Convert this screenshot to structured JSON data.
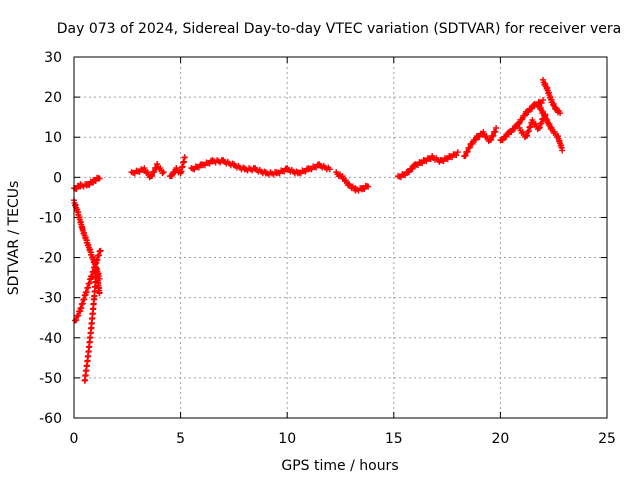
{
  "chart_data": {
    "type": "scatter",
    "title": "Day 073 of 2024, Sidereal Day-to-day VTEC variation (SDTVAR) for receiver vera",
    "xlabel": "GPS time / hours",
    "ylabel": "SDTVAR / TECUs",
    "xlim": [
      0,
      25
    ],
    "ylim": [
      -60,
      30
    ],
    "xticks": [
      0,
      5,
      10,
      15,
      20,
      25
    ],
    "yticks": [
      -60,
      -50,
      -40,
      -30,
      -20,
      -10,
      0,
      10,
      20,
      30
    ],
    "grid": true,
    "marker": "+",
    "color": "#ff0000",
    "segments": [
      {
        "name": "arc-low-1",
        "x": [
          0.0,
          0.2,
          0.4,
          0.6,
          0.8,
          1.0,
          1.2
        ],
        "y": [
          -6,
          -9,
          -13,
          -16,
          -19,
          -22,
          -25
        ]
      },
      {
        "name": "arc-low-2",
        "x": [
          0.05,
          0.3,
          0.55,
          0.8,
          1.05,
          1.25
        ],
        "y": [
          -36,
          -33,
          -29,
          -25,
          -21,
          -18
        ]
      },
      {
        "name": "arc-low-3",
        "x": [
          0.5,
          0.65,
          0.8,
          0.95,
          1.05,
          1.2
        ],
        "y": [
          -51,
          -45,
          -38,
          -30,
          -23,
          -29
        ]
      },
      {
        "name": "arc-start",
        "x": [
          0.0,
          0.3,
          0.6,
          0.9,
          1.2
        ],
        "y": [
          -3,
          -2,
          -2,
          -1,
          0
        ]
      },
      {
        "name": "arc-3h",
        "x": [
          2.7,
          3.3,
          3.6,
          3.9,
          4.2
        ],
        "y": [
          1,
          2,
          0,
          3,
          1
        ]
      },
      {
        "name": "arc-4h",
        "x": [
          4.5,
          4.8,
          5.0,
          5.2
        ],
        "y": [
          0,
          2,
          1,
          5
        ]
      },
      {
        "name": "arc-mid",
        "x": [
          5.5,
          6.0,
          6.5,
          7.0,
          7.5,
          8.0,
          8.5,
          9.0,
          9.5,
          10.0,
          10.5,
          11.0,
          11.5,
          12.0
        ],
        "y": [
          2,
          3,
          4,
          4,
          3,
          2,
          2,
          1,
          1,
          2,
          1,
          2,
          3,
          2
        ]
      },
      {
        "name": "arc-13h",
        "x": [
          12.3,
          12.6,
          12.9,
          13.2,
          13.5,
          13.8
        ],
        "y": [
          1,
          0,
          -2,
          -3,
          -3,
          -2
        ]
      },
      {
        "name": "arc-15h",
        "x": [
          15.2,
          15.6,
          16.0,
          16.4,
          16.8,
          17.2,
          17.6,
          18.0
        ],
        "y": [
          0,
          1,
          3,
          4,
          5,
          4,
          5,
          6
        ]
      },
      {
        "name": "arc-18h",
        "x": [
          18.3,
          18.6,
          18.9,
          19.2,
          19.5,
          19.8
        ],
        "y": [
          5,
          8,
          10,
          11,
          9,
          12
        ]
      },
      {
        "name": "arc-20h",
        "x": [
          20.0,
          20.4,
          20.8,
          21.2,
          21.6,
          22.0
        ],
        "y": [
          9,
          11,
          13,
          16,
          18,
          19
        ]
      },
      {
        "name": "arc-21h",
        "x": [
          20.9,
          21.2,
          21.5,
          21.8,
          22.1
        ],
        "y": [
          12,
          10,
          14,
          12,
          16
        ]
      },
      {
        "name": "arc-22h",
        "x": [
          22.0,
          22.2,
          22.4,
          22.6,
          22.8
        ],
        "y": [
          24,
          22,
          19,
          17,
          16
        ]
      },
      {
        "name": "arc-22h-b",
        "x": [
          21.8,
          22.1,
          22.4,
          22.7,
          22.9
        ],
        "y": [
          18,
          15,
          12,
          10,
          7
        ]
      }
    ]
  }
}
